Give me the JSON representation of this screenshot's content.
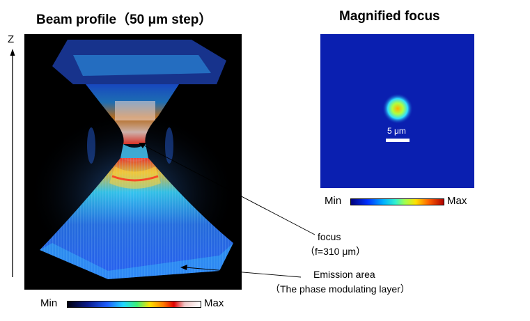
{
  "titles": {
    "beam_profile": "Beam profile（50 μm step）",
    "magnified_focus": "Magnified focus"
  },
  "axis": {
    "z_label": "Z"
  },
  "colorbar_main": {
    "min": "Min",
    "max": "Max"
  },
  "colorbar_focus": {
    "min": "Min",
    "max": "Max"
  },
  "scale_bar": {
    "label": "5 μm"
  },
  "annotations": {
    "focus": {
      "line1": "focus",
      "line2": "（f=310 μm）"
    },
    "emission": {
      "line1": "Emission area",
      "line2": "（The phase modulating layer）"
    }
  },
  "colors": {
    "panel_background": "#000000",
    "focus_background": "#0a1fb0",
    "beam_blue": "#1f5fff",
    "beam_hot": "#e00000"
  }
}
